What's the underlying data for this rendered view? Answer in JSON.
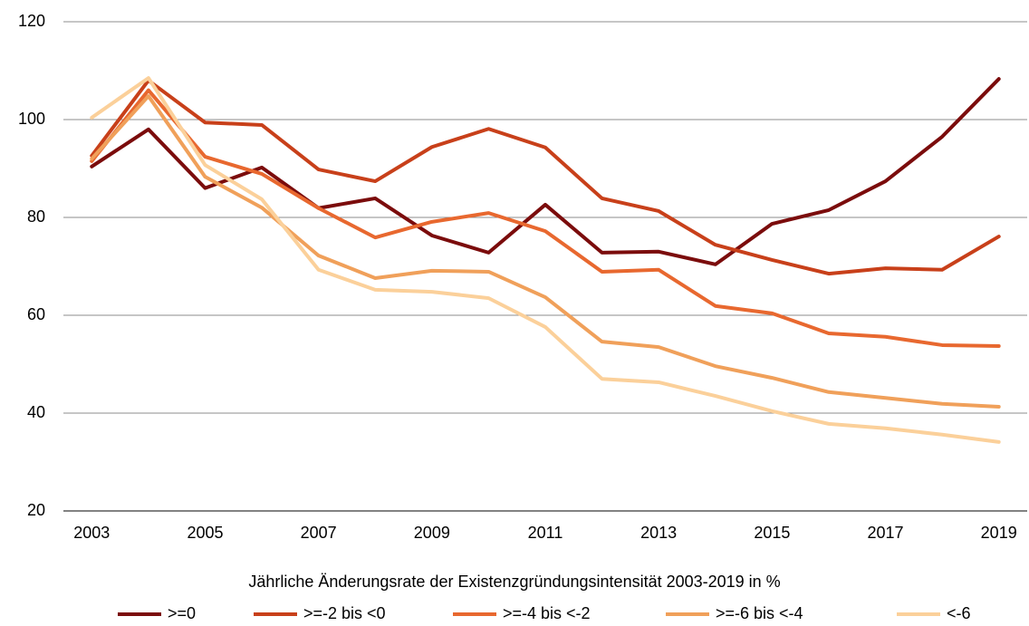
{
  "chart_data": {
    "type": "line",
    "xlabel": "Jährliche Änderungsrate der Existenzgründungsintensität 2003-2019 in %",
    "x": [
      2003,
      2004,
      2005,
      2006,
      2007,
      2008,
      2009,
      2010,
      2011,
      2012,
      2013,
      2014,
      2015,
      2016,
      2017,
      2018,
      2019
    ],
    "xlim": [
      2002.5,
      2019.5
    ],
    "xticks": [
      2003,
      2005,
      2007,
      2009,
      2011,
      2013,
      2015,
      2017,
      2019
    ],
    "ylim": [
      20,
      120
    ],
    "yticks": [
      20,
      40,
      60,
      80,
      100,
      120
    ],
    "grid": true,
    "legend": "bottom",
    "series": [
      {
        "name": ">=0",
        "color": "#7b0c0c",
        "values": [
          90.4,
          98,
          86,
          90.2,
          81.9,
          83.9,
          76.3,
          72.8,
          82.6,
          72.8,
          73,
          70.4,
          78.7,
          81.5,
          87.4,
          96.5,
          108.3
        ]
      },
      {
        "name": ">=-2 bis <0",
        "color": "#c8401a",
        "values": [
          92.6,
          108,
          99.4,
          98.9,
          89.8,
          87.4,
          94.4,
          98.1,
          94.3,
          83.9,
          81.3,
          74.4,
          71.3,
          68.5,
          69.6,
          69.3,
          76.1
        ]
      },
      {
        "name": ">=-4 bis <-2",
        "color": "#e8682f",
        "values": [
          91.5,
          106,
          92.4,
          88.9,
          81.9,
          75.9,
          79.1,
          80.9,
          77.2,
          68.9,
          69.3,
          61.9,
          60.4,
          56.3,
          55.6,
          53.9,
          53.7
        ]
      },
      {
        "name": ">=-6 bis <-4",
        "color": "#f0a05a",
        "values": [
          92,
          104.8,
          88.3,
          82,
          72.2,
          67.6,
          69.1,
          68.9,
          63.7,
          54.6,
          53.5,
          49.6,
          47.2,
          44.3,
          43.1,
          41.9,
          41.3
        ]
      },
      {
        "name": "<-6",
        "color": "#fbd09a",
        "values": [
          100.4,
          108.5,
          90.7,
          83.7,
          69.3,
          65.2,
          64.8,
          63.5,
          57.6,
          47,
          46.3,
          43.5,
          40.4,
          37.8,
          36.9,
          35.6,
          34.1
        ]
      }
    ]
  }
}
